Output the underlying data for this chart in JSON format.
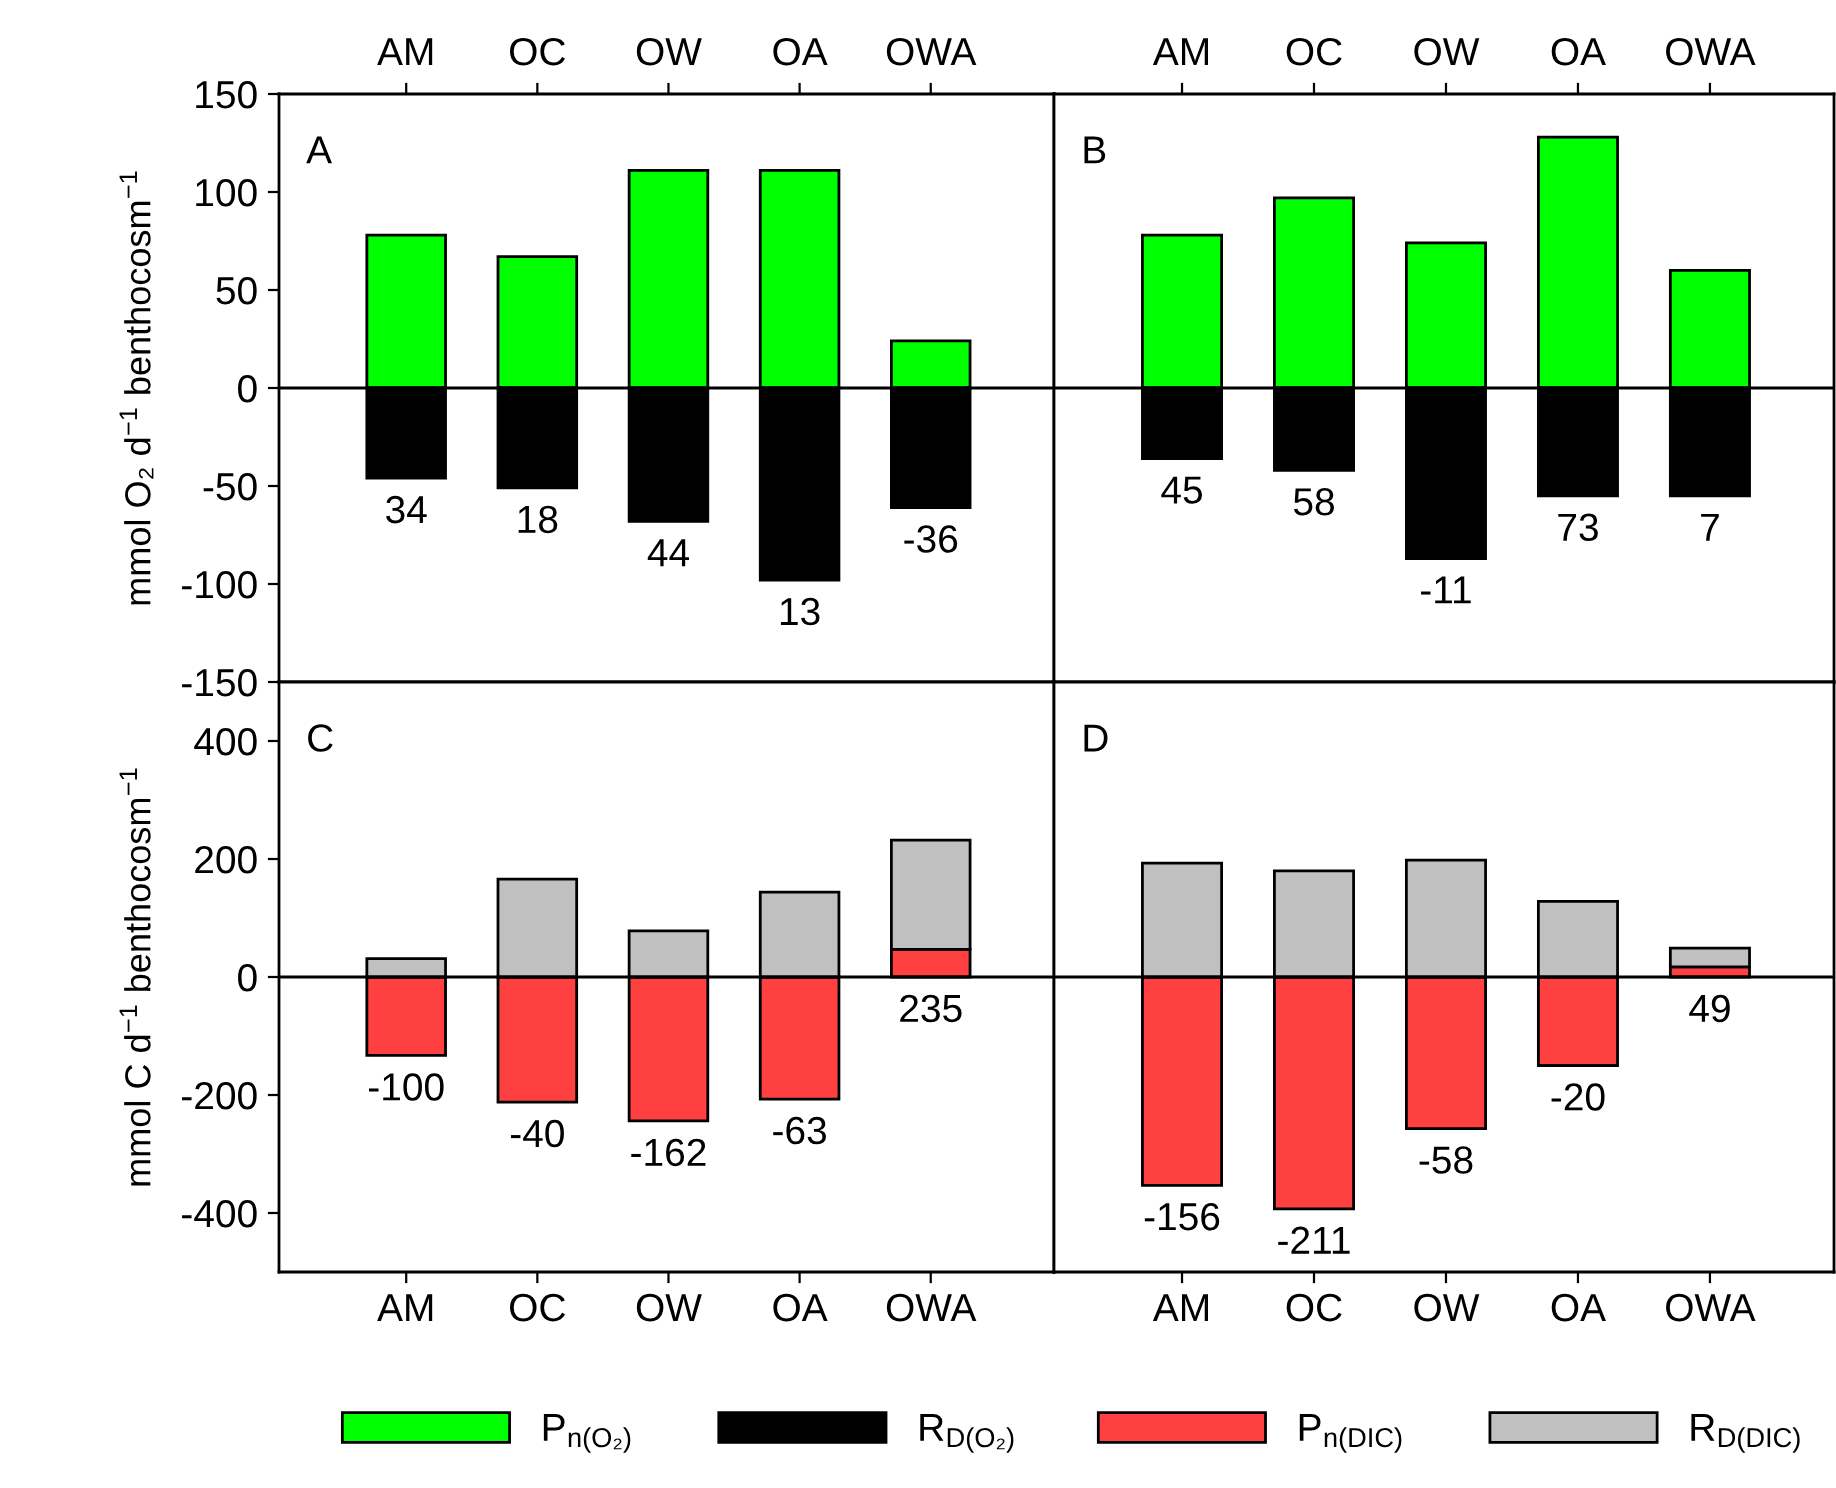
{
  "chart_data": [
    {
      "type": "bar",
      "stacked": true,
      "title": "A",
      "categories": [
        "AM",
        "OC",
        "OW",
        "OA",
        "OWA"
      ],
      "ylabel": "mmol O₂ d$^{−1}$ benthocosm$^{−1}$",
      "ylim": [
        -150,
        150
      ],
      "yticks": [
        -150,
        -100,
        -50,
        0,
        50,
        100,
        150
      ],
      "legend": "bottom",
      "series": [
        {
          "name": "P$_{n(O₂)}$",
          "color": "#00ff00",
          "values": [
            78,
            67,
            111,
            111,
            24
          ]
        },
        {
          "name": "R$_{D(O₂)}$",
          "color": "#000000",
          "values": [
            -46,
            -51,
            -68,
            -98,
            -61
          ]
        }
      ],
      "annotations": [
        {
          "text": "34",
          "x": "AM",
          "y": -46
        },
        {
          "text": "18",
          "x": "OC",
          "y": -51
        },
        {
          "text": "44",
          "x": "OW",
          "y": -68
        },
        {
          "text": "13",
          "x": "OA",
          "y": -98
        },
        {
          "text": "-36",
          "x": "OWA",
          "y": -61
        }
      ]
    },
    {
      "type": "bar",
      "stacked": true,
      "title": "B",
      "categories": [
        "AM",
        "OC",
        "OW",
        "OA",
        "OWA"
      ],
      "ylim": [
        -150,
        150
      ],
      "yticks": [
        -150,
        -100,
        -50,
        0,
        50,
        100,
        150
      ],
      "tick_labels": "x",
      "series": [
        {
          "color": "#00ff00",
          "values": [
            78,
            97,
            74,
            128,
            60
          ]
        },
        {
          "color": "#000000",
          "values": [
            -36,
            -42,
            -87,
            -55,
            -55
          ]
        }
      ],
      "annotations": [
        {
          "text": "45",
          "x": "AM",
          "y": -36
        },
        {
          "text": "58",
          "x": "OC",
          "y": -42
        },
        {
          "text": "-11",
          "x": "OW",
          "y": -87
        },
        {
          "text": "73",
          "x": "OA",
          "y": -55
        },
        {
          "text": "7",
          "x": "OWA",
          "y": -55
        }
      ]
    },
    {
      "type": "bar",
      "stacked": true,
      "title": "C",
      "categories": [
        "AM",
        "OC",
        "OW",
        "OA",
        "OWA"
      ],
      "ylabel": "mmol C d$^{−1}$ benthocosm$^{−1}$",
      "ylim": [
        -500,
        500
      ],
      "yticks": [
        -400,
        -200,
        0,
        200,
        400
      ],
      "legend": "bottom",
      "series": [
        {
          "name": "P$_{n(DIC)}$",
          "color": "#ff4040",
          "values": [
            -133,
            -212,
            -244,
            -207,
            47
          ]
        },
        {
          "name": "R$_{D(DIC)}$",
          "color": "#c0c0c0",
          "values": [
            31,
            166,
            78,
            144,
            185
          ]
        }
      ],
      "annotations": [
        {
          "text": "-100",
          "x": "AM",
          "y": -133
        },
        {
          "text": "-40",
          "x": "OC",
          "y": -212
        },
        {
          "text": "-162",
          "x": "OW",
          "y": -244
        },
        {
          "text": "-63",
          "x": "OA",
          "y": -207
        },
        {
          "text": "235",
          "x": "OWA",
          "y": 0
        }
      ]
    },
    {
      "type": "bar",
      "stacked": true,
      "title": "D",
      "categories": [
        "AM",
        "OC",
        "OW",
        "OA",
        "OWA"
      ],
      "ylim": [
        -500,
        500
      ],
      "yticks": [
        -400,
        -200,
        0,
        200,
        400
      ],
      "tick_labels": "x",
      "series": [
        {
          "color": "#ff4040",
          "values": [
            -353,
            -393,
            -257,
            -150,
            17
          ]
        },
        {
          "color": "#c0c0c0",
          "values": [
            193,
            180,
            198,
            128,
            32
          ]
        }
      ],
      "annotations": [
        {
          "text": "-156",
          "x": "AM",
          "y": -353
        },
        {
          "text": "-211",
          "x": "OC",
          "y": -393
        },
        {
          "text": "-58",
          "x": "OW",
          "y": -257
        },
        {
          "text": "-20",
          "x": "OA",
          "y": -150
        },
        {
          "text": "49",
          "x": "OWA",
          "y": 0
        }
      ]
    }
  ]
}
